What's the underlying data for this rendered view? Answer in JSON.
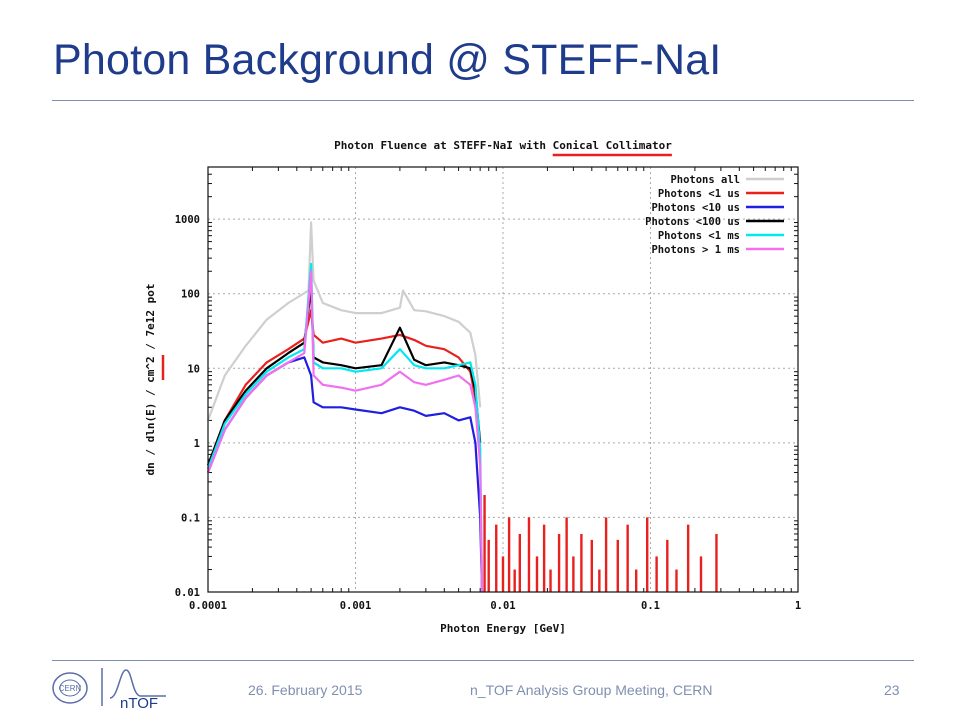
{
  "slide": {
    "title": "Photon  Background @ STEFF-NaI",
    "footer": {
      "date": "26. February 2015",
      "meeting": "n_TOF Analysis Group Meeting, CERN",
      "page": "23",
      "cern_logo_text": "CERN",
      "ntof_logo_text": "nTOF"
    }
  },
  "colors": {
    "title": "#1f3b8c",
    "rule": "#7f8fae",
    "highlight": "#e8201e"
  },
  "chart_data": {
    "type": "line",
    "title": "Photon Fluence at STEFF-NaI with Conical Collimator",
    "title_highlight": "Conical Collimator",
    "xlabel": "Photon Energy [GeV]",
    "ylabel": "dn / dln(E) / cm^2 / 7e12 pot",
    "xscale": "log",
    "yscale": "log",
    "xlim": [
      0.0001,
      1
    ],
    "ylim": [
      0.01,
      5000
    ],
    "xticks": [
      "0.0001",
      "0.001",
      "0.01",
      "0.1",
      "1"
    ],
    "yticks": [
      "0.01",
      "0.1",
      "1",
      "10",
      "100",
      "1000"
    ],
    "grid": true,
    "legend_position": "top-right",
    "series": [
      {
        "name": "Photons all",
        "color": "#cfcfcf",
        "x": [
          0.0001,
          0.00013,
          0.00018,
          0.00025,
          0.00035,
          0.00048,
          0.0005,
          0.00052,
          0.0006,
          0.0008,
          0.001,
          0.0015,
          0.002,
          0.0021,
          0.0025,
          0.003,
          0.004,
          0.005,
          0.006,
          0.0065,
          0.007
        ],
        "y": [
          2,
          8,
          20,
          45,
          75,
          110,
          900,
          150,
          75,
          60,
          55,
          55,
          65,
          110,
          60,
          58,
          50,
          42,
          30,
          15,
          3
        ]
      },
      {
        "name": "Photons <1 us",
        "color": "#e8201e",
        "x": [
          0.0001,
          0.00013,
          0.00018,
          0.00025,
          0.00035,
          0.00045,
          0.0005,
          0.00052,
          0.0006,
          0.0008,
          0.001,
          0.0015,
          0.002,
          0.0025,
          0.003,
          0.004,
          0.005,
          0.006,
          0.0065,
          0.007
        ],
        "y": [
          0.5,
          2,
          6,
          12,
          18,
          25,
          60,
          28,
          22,
          25,
          22,
          25,
          28,
          24,
          20,
          18,
          14,
          9,
          4,
          0.8
        ],
        "spikes": [
          [
            0.0075,
            0.2
          ],
          [
            0.008,
            0.05
          ],
          [
            0.009,
            0.08
          ],
          [
            0.01,
            0.03
          ],
          [
            0.011,
            0.1
          ],
          [
            0.012,
            0.02
          ],
          [
            0.013,
            0.06
          ],
          [
            0.015,
            0.1
          ],
          [
            0.017,
            0.03
          ],
          [
            0.019,
            0.08
          ],
          [
            0.021,
            0.02
          ],
          [
            0.024,
            0.06
          ],
          [
            0.027,
            0.1
          ],
          [
            0.03,
            0.03
          ],
          [
            0.034,
            0.06
          ],
          [
            0.04,
            0.05
          ],
          [
            0.045,
            0.02
          ],
          [
            0.05,
            0.1
          ],
          [
            0.06,
            0.05
          ],
          [
            0.07,
            0.08
          ],
          [
            0.08,
            0.02
          ],
          [
            0.095,
            0.1
          ],
          [
            0.11,
            0.03
          ],
          [
            0.13,
            0.05
          ],
          [
            0.15,
            0.02
          ],
          [
            0.18,
            0.08
          ],
          [
            0.22,
            0.03
          ],
          [
            0.28,
            0.06
          ]
        ]
      },
      {
        "name": "Photons <10 us",
        "color": "#1f1fe0",
        "x": [
          0.0001,
          0.00013,
          0.00018,
          0.00025,
          0.00035,
          0.00045,
          0.0005,
          0.00052,
          0.0006,
          0.0008,
          0.001,
          0.0015,
          0.002,
          0.0025,
          0.003,
          0.004,
          0.005,
          0.006,
          0.0065,
          0.007,
          0.0072
        ],
        "y": [
          0.4,
          1.5,
          4,
          8,
          12,
          14,
          8,
          3.5,
          3,
          3,
          2.8,
          2.5,
          3,
          2.7,
          2.3,
          2.5,
          2,
          2.2,
          1,
          0.1,
          0.01
        ]
      },
      {
        "name": "Photons <100 us",
        "color": "#000000",
        "x": [
          0.0001,
          0.00013,
          0.00018,
          0.00025,
          0.00035,
          0.00045,
          0.0005,
          0.00052,
          0.0006,
          0.0008,
          0.001,
          0.0015,
          0.002,
          0.0025,
          0.003,
          0.004,
          0.005,
          0.006,
          0.0065,
          0.007
        ],
        "y": [
          0.5,
          2,
          5,
          10,
          16,
          22,
          120,
          14,
          12,
          11,
          10,
          11,
          35,
          13,
          11,
          12,
          11,
          10,
          5,
          1
        ]
      },
      {
        "name": "Photons <1 ms",
        "color": "#00e8f0",
        "x": [
          0.0001,
          0.00013,
          0.00018,
          0.00025,
          0.00035,
          0.00045,
          0.0005,
          0.00052,
          0.0006,
          0.0008,
          0.001,
          0.0015,
          0.002,
          0.0025,
          0.003,
          0.004,
          0.005,
          0.006,
          0.0065,
          0.007,
          0.0072
        ],
        "y": [
          0.45,
          1.8,
          4.5,
          9,
          14,
          18,
          250,
          12,
          10,
          10,
          9,
          10,
          18,
          11,
          10,
          10,
          11,
          12,
          6,
          0.8,
          0.01
        ]
      },
      {
        "name": "Photons > 1 ms",
        "color": "#f070f0",
        "x": [
          0.0001,
          0.00013,
          0.00018,
          0.00025,
          0.00035,
          0.00045,
          0.0005,
          0.00052,
          0.0006,
          0.0008,
          0.001,
          0.0015,
          0.002,
          0.0025,
          0.003,
          0.004,
          0.005,
          0.006,
          0.0065,
          0.007,
          0.0072
        ],
        "y": [
          0.4,
          1.5,
          4,
          8,
          12,
          16,
          200,
          8,
          6,
          5.5,
          5,
          6,
          9,
          6.5,
          6,
          7,
          8,
          6,
          3,
          0.5,
          0.01
        ]
      }
    ]
  }
}
